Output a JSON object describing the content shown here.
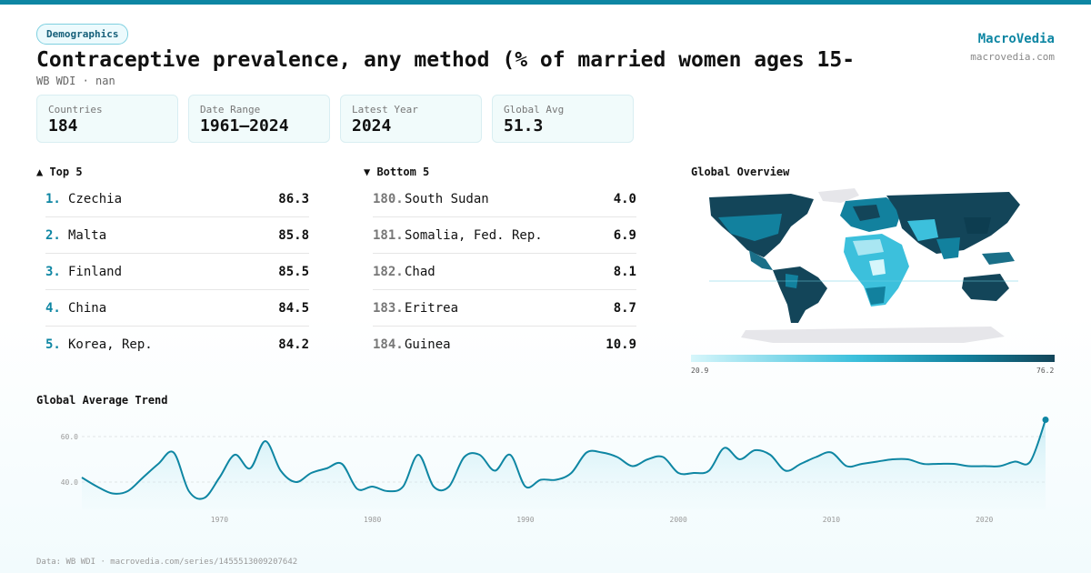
{
  "brand": {
    "name": "MacroVedia",
    "url": "macrovedia.com"
  },
  "tag": "Demographics",
  "title": "Contraceptive prevalence, any method (% of married women ages 15-",
  "subtitle": "WB WDI · nan",
  "stats": [
    {
      "label": "Countries",
      "value": "184"
    },
    {
      "label": "Date Range",
      "value": "1961–2024"
    },
    {
      "label": "Latest Year",
      "value": "2024"
    },
    {
      "label": "Global Avg",
      "value": "51.3"
    }
  ],
  "top5": {
    "heading": "▲ Top 5",
    "items": [
      {
        "rank": "1.",
        "name": "Czechia",
        "value": "86.3"
      },
      {
        "rank": "2.",
        "name": "Malta",
        "value": "85.8"
      },
      {
        "rank": "3.",
        "name": "Finland",
        "value": "85.5"
      },
      {
        "rank": "4.",
        "name": "China",
        "value": "84.5"
      },
      {
        "rank": "5.",
        "name": "Korea, Rep.",
        "value": "84.2"
      }
    ]
  },
  "bottom5": {
    "heading": "▼ Bottom 5",
    "items": [
      {
        "rank": "180.",
        "name": "South Sudan",
        "value": "4.0"
      },
      {
        "rank": "181.",
        "name": "Somalia, Fed. Rep.",
        "value": "6.9"
      },
      {
        "rank": "182.",
        "name": "Chad",
        "value": "8.1"
      },
      {
        "rank": "183.",
        "name": "Eritrea",
        "value": "8.7"
      },
      {
        "rank": "184.",
        "name": "Guinea",
        "value": "10.9"
      }
    ]
  },
  "map": {
    "heading": "Global Overview",
    "scale_min": "20.9",
    "scale_max": "76.2",
    "colors": {
      "low": "#d6f6fb",
      "mid": "#3cc0dc",
      "high": "#134559",
      "nodata": "#e6e6ea"
    }
  },
  "trend": {
    "heading": "Global Average Trend"
  },
  "chart_data": {
    "type": "area",
    "title": "Global Average Trend",
    "x": [
      1961,
      1962,
      1963,
      1964,
      1965,
      1966,
      1967,
      1968,
      1969,
      1970,
      1971,
      1972,
      1973,
      1974,
      1975,
      1976,
      1977,
      1978,
      1979,
      1980,
      1981,
      1982,
      1983,
      1984,
      1985,
      1986,
      1987,
      1988,
      1989,
      1990,
      1991,
      1992,
      1993,
      1994,
      1995,
      1996,
      1997,
      1998,
      1999,
      2000,
      2001,
      2002,
      2003,
      2004,
      2005,
      2006,
      2007,
      2008,
      2009,
      2010,
      2011,
      2012,
      2013,
      2014,
      2015,
      2016,
      2017,
      2018,
      2019,
      2020,
      2021,
      2022,
      2023,
      2024
    ],
    "y": [
      42.0,
      38.0,
      35.0,
      36.0,
      42.0,
      48.0,
      53.0,
      36.0,
      33.0,
      42.0,
      52.0,
      46.0,
      58.0,
      45.0,
      40.0,
      44.0,
      46.0,
      48.0,
      37.0,
      38.0,
      36.0,
      38.0,
      52.0,
      38.0,
      38.0,
      51.0,
      52.0,
      45.0,
      52.0,
      38.0,
      41.0,
      41.0,
      44.0,
      53.0,
      53.0,
      51.0,
      47.0,
      50.0,
      51.0,
      44.0,
      44.0,
      45.0,
      55.0,
      50.0,
      54.0,
      52.0,
      45.0,
      48.0,
      51.0,
      53.0,
      47.0,
      48.0,
      49.0,
      50.0,
      50.0,
      48.0,
      48.0,
      48.0,
      47.0,
      47.0,
      47.0,
      49.0,
      49.0,
      67.4
    ],
    "yticks": [
      "40.0",
      "60.0"
    ],
    "xticks": [
      "1970",
      "1980",
      "1990",
      "2000",
      "2010",
      "2020"
    ],
    "ylim": [
      28,
      70
    ],
    "last_label": "67.4",
    "grid": true,
    "line_color": "#0e86a3"
  },
  "footer": "Data: WB WDI · macrovedia.com/series/1455513009207642"
}
